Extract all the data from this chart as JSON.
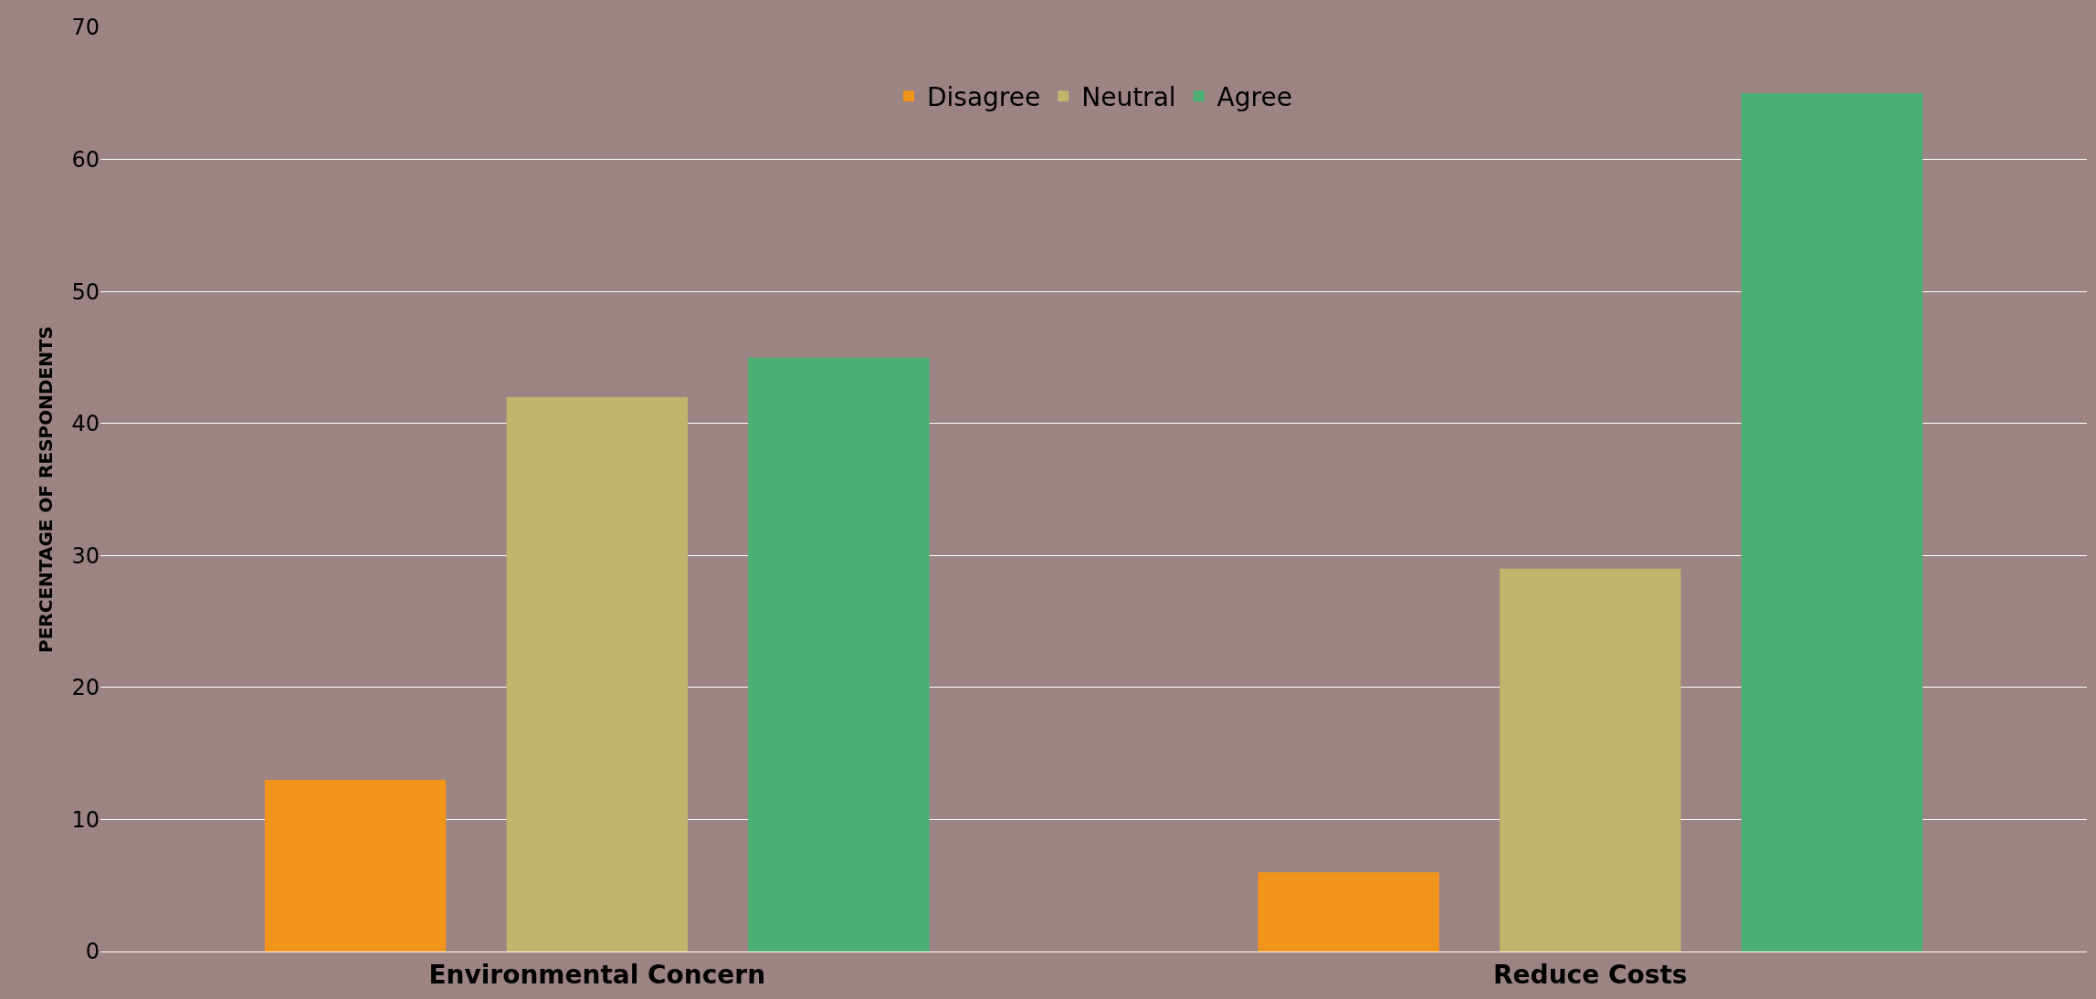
{
  "chart_data": {
    "type": "bar",
    "ylabel": "PERCENTAGE OF RESPONDENTS",
    "categories": [
      "Environmental Concern",
      "Reduce Costs"
    ],
    "series": [
      {
        "name": "Disagree",
        "color": "#f0941a",
        "values": [
          13,
          6
        ]
      },
      {
        "name": "Neutral",
        "color": "#c2b46c",
        "values": [
          42,
          29
        ]
      },
      {
        "name": "Agree",
        "color": "#4baf73",
        "values": [
          45,
          65
        ]
      }
    ],
    "ylim": [
      0,
      70
    ],
    "yticks": [
      0,
      10,
      20,
      30,
      40,
      50,
      60,
      70
    ],
    "grid": "y",
    "legend": "top"
  }
}
